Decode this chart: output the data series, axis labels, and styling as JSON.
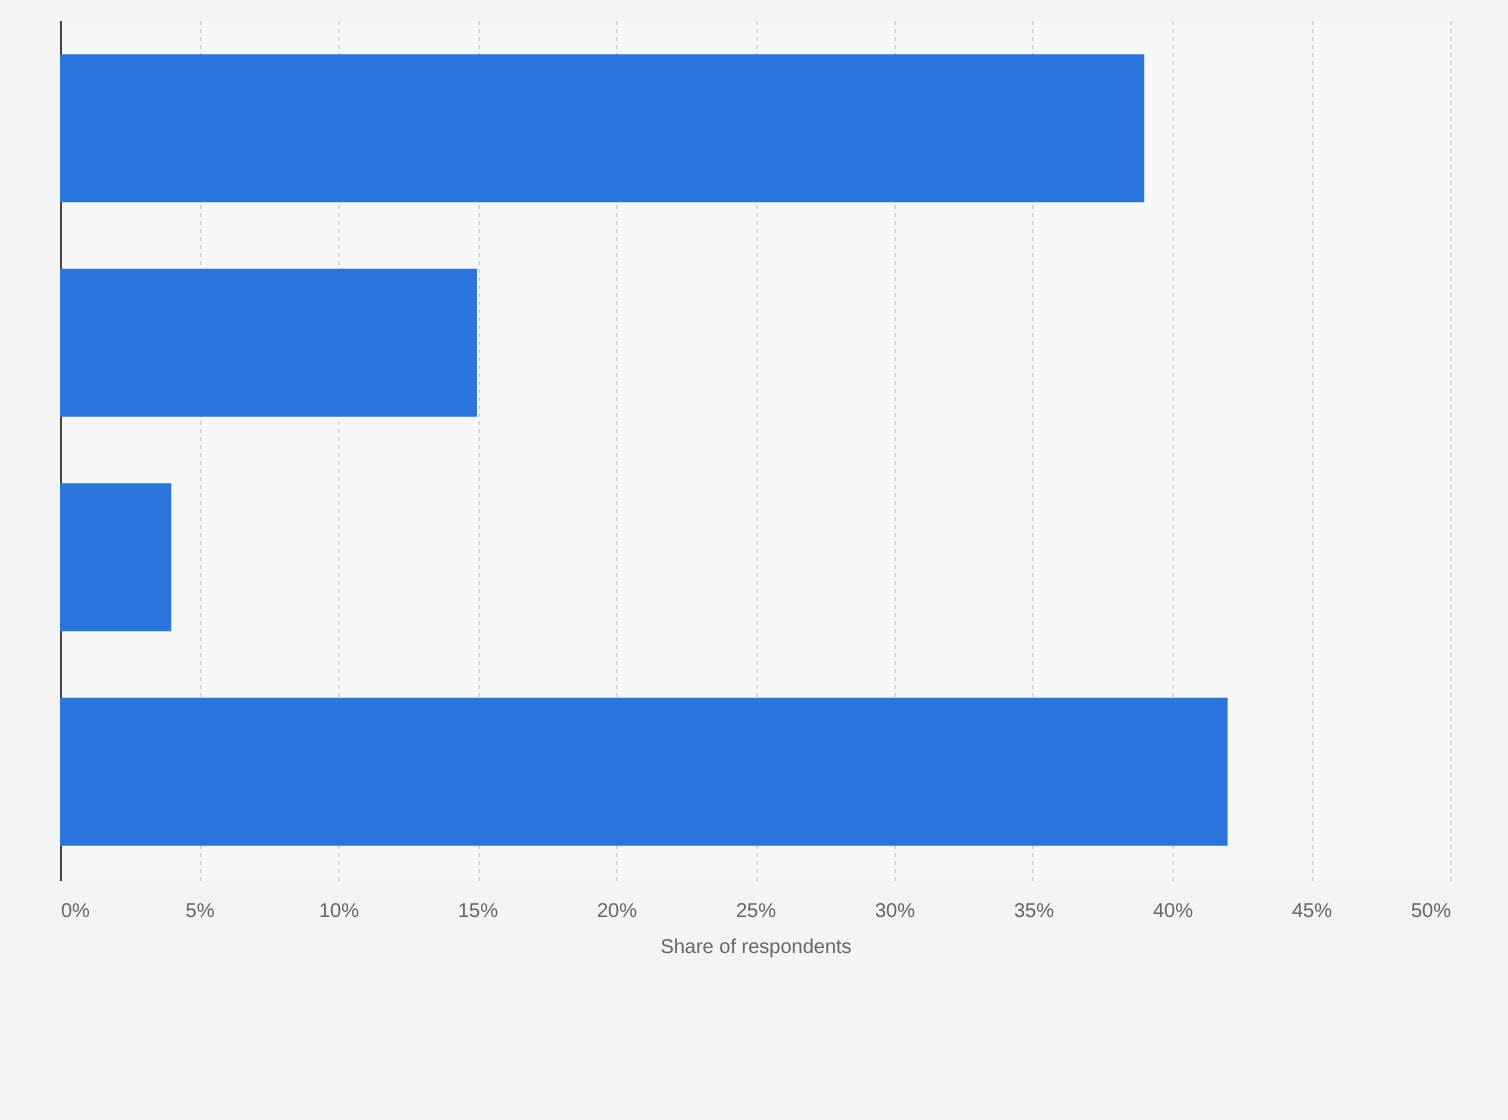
{
  "chart_data": {
    "type": "bar",
    "orientation": "horizontal",
    "xlabel": "Share of respondents",
    "categories": [
      null,
      null,
      null,
      null
    ],
    "values": [
      39,
      15,
      4,
      42
    ],
    "color": "#2876dd",
    "xlim": [
      0,
      50
    ],
    "xticks": [
      {
        "value": 0,
        "label": "0%"
      },
      {
        "value": 5,
        "label": "5%"
      },
      {
        "value": 10,
        "label": "10%"
      },
      {
        "value": 15,
        "label": "15%"
      },
      {
        "value": 20,
        "label": "20%"
      },
      {
        "value": 25,
        "label": "25%"
      },
      {
        "value": 30,
        "label": "30%"
      },
      {
        "value": 35,
        "label": "35%"
      },
      {
        "value": 40,
        "label": "40%"
      },
      {
        "value": 45,
        "label": "45%"
      },
      {
        "value": 50,
        "label": "50%"
      }
    ],
    "grid": "x",
    "tick_labels": "x"
  }
}
